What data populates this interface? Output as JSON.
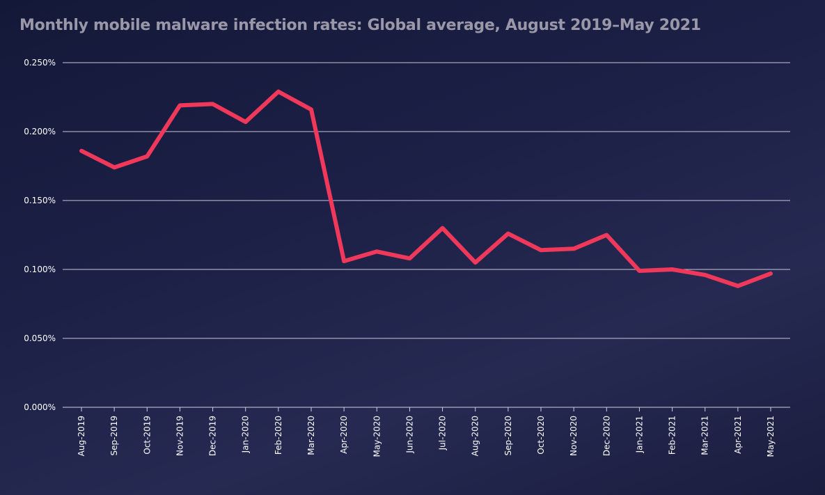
{
  "chart_data": {
    "type": "line",
    "title": "Monthly mobile malware infection rates: Global average, August 2019–May 2021",
    "xlabel": "",
    "ylabel": "",
    "ylim": [
      0,
      0.25
    ],
    "yticks": [
      "0.000%",
      "0.050%",
      "0.100%",
      "0.150%",
      "0.200%",
      "0.250%"
    ],
    "grid": true,
    "line_color": "#f0385a",
    "categories": [
      "Aug-2019",
      "Sep-2019",
      "Oct-2019",
      "Nov-2019",
      "Dec-2019",
      "Jan-2020",
      "Feb-2020",
      "Mar-2020",
      "Apr-2020",
      "May-2020",
      "Jun-2020",
      "Jul-2020",
      "Aug-2020",
      "Sep-2020",
      "Oct-2020",
      "Nov-2020",
      "Dec-2020",
      "Jan-2021",
      "Feb-2021",
      "Mar-2021",
      "Apr-2021",
      "May-2021"
    ],
    "values": [
      0.186,
      0.174,
      0.182,
      0.219,
      0.22,
      0.207,
      0.229,
      0.216,
      0.106,
      0.113,
      0.108,
      0.13,
      0.105,
      0.126,
      0.114,
      0.115,
      0.125,
      0.099,
      0.1,
      0.096,
      0.088,
      0.097
    ]
  }
}
